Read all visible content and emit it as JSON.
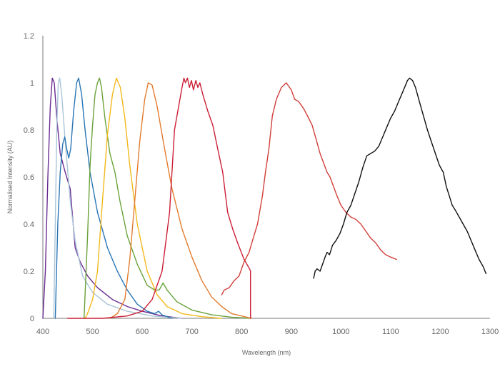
{
  "chart_data": {
    "type": "line",
    "title": "",
    "xlabel": "Wavelength (nm)",
    "ylabel": "Normalised Intensity (AU)",
    "xlim": [
      400,
      1300
    ],
    "ylim": [
      0,
      1.2
    ],
    "xticks": [
      400,
      500,
      600,
      700,
      800,
      900,
      1000,
      1100,
      1200,
      1300
    ],
    "yticks": [
      0,
      0.2,
      0.4,
      0.6,
      0.8,
      1,
      1.2
    ],
    "xtick_labels": [
      "400",
      "500",
      "600",
      "700",
      "800",
      "900",
      "1000",
      "1100",
      "1200",
      "1300"
    ],
    "ytick_labels": [
      "0",
      "0.2",
      "0.4",
      "0.6",
      "0.8",
      "1",
      "1.2"
    ],
    "grid": false,
    "legend": "none",
    "series": [
      {
        "color": "#6a2c91",
        "points": [
          [
            400,
            0
          ],
          [
            405,
            0.2
          ],
          [
            410,
            0.6
          ],
          [
            415,
            0.9
          ],
          [
            419,
            1.02
          ],
          [
            423,
            1.0
          ],
          [
            428,
            0.85
          ],
          [
            435,
            0.7
          ],
          [
            445,
            0.62
          ],
          [
            455,
            0.55
          ],
          [
            465,
            0.3
          ],
          [
            475,
            0.24
          ],
          [
            490,
            0.18
          ],
          [
            510,
            0.13
          ],
          [
            540,
            0.08
          ],
          [
            570,
            0.05
          ],
          [
            600,
            0.03
          ],
          [
            640,
            0.01
          ],
          [
            680,
            0.0
          ]
        ]
      },
      {
        "color": "#a9c4d8",
        "points": [
          [
            422,
            0
          ],
          [
            425,
            0.4
          ],
          [
            428,
            0.8
          ],
          [
            431,
            1.0
          ],
          [
            434,
            1.02
          ],
          [
            438,
            0.95
          ],
          [
            445,
            0.75
          ],
          [
            455,
            0.5
          ],
          [
            465,
            0.33
          ],
          [
            480,
            0.18
          ],
          [
            500,
            0.11
          ],
          [
            530,
            0.06
          ],
          [
            570,
            0.03
          ],
          [
            620,
            0.01
          ],
          [
            680,
            0.0
          ]
        ]
      },
      {
        "color": "#2a76b4",
        "points": [
          [
            425,
            0
          ],
          [
            430,
            0.4
          ],
          [
            435,
            0.62
          ],
          [
            440,
            0.74
          ],
          [
            444,
            0.77
          ],
          [
            448,
            0.72
          ],
          [
            452,
            0.68
          ],
          [
            456,
            0.72
          ],
          [
            462,
            0.88
          ],
          [
            468,
            1.0
          ],
          [
            472,
            1.02
          ],
          [
            478,
            0.95
          ],
          [
            485,
            0.8
          ],
          [
            495,
            0.62
          ],
          [
            510,
            0.45
          ],
          [
            530,
            0.3
          ],
          [
            550,
            0.2
          ],
          [
            570,
            0.12
          ],
          [
            590,
            0.06
          ],
          [
            610,
            0.03
          ],
          [
            625,
            0.02
          ],
          [
            633,
            0.03
          ],
          [
            640,
            0.015
          ],
          [
            660,
            0.0
          ]
        ]
      },
      {
        "color": "#6aa23a",
        "points": [
          [
            483,
            0
          ],
          [
            490,
            0.35
          ],
          [
            495,
            0.65
          ],
          [
            500,
            0.82
          ],
          [
            505,
            0.95
          ],
          [
            510,
            1.0
          ],
          [
            514,
            1.02
          ],
          [
            518,
            0.98
          ],
          [
            525,
            0.85
          ],
          [
            535,
            0.7
          ],
          [
            545,
            0.62
          ],
          [
            555,
            0.5
          ],
          [
            570,
            0.35
          ],
          [
            590,
            0.23
          ],
          [
            610,
            0.14
          ],
          [
            625,
            0.12
          ],
          [
            634,
            0.12
          ],
          [
            642,
            0.15
          ],
          [
            650,
            0.12
          ],
          [
            670,
            0.07
          ],
          [
            700,
            0.035
          ],
          [
            740,
            0.015
          ],
          [
            780,
            0.005
          ],
          [
            820,
            0.0
          ]
        ]
      },
      {
        "color": "#f2b81b",
        "points": [
          [
            485,
            0
          ],
          [
            490,
            0.02
          ],
          [
            500,
            0.08
          ],
          [
            510,
            0.2
          ],
          [
            520,
            0.5
          ],
          [
            530,
            0.78
          ],
          [
            540,
            0.95
          ],
          [
            548,
            1.02
          ],
          [
            556,
            0.98
          ],
          [
            565,
            0.85
          ],
          [
            575,
            0.65
          ],
          [
            590,
            0.4
          ],
          [
            610,
            0.2
          ],
          [
            630,
            0.1
          ],
          [
            650,
            0.05
          ],
          [
            680,
            0.02
          ],
          [
            720,
            0.007
          ],
          [
            760,
            0.0
          ]
        ]
      },
      {
        "color": "#e37b2e",
        "points": [
          [
            535,
            0
          ],
          [
            550,
            0.02
          ],
          [
            565,
            0.08
          ],
          [
            575,
            0.25
          ],
          [
            585,
            0.5
          ],
          [
            595,
            0.75
          ],
          [
            605,
            0.93
          ],
          [
            612,
            1.0
          ],
          [
            620,
            0.99
          ],
          [
            630,
            0.9
          ],
          [
            645,
            0.72
          ],
          [
            660,
            0.55
          ],
          [
            680,
            0.38
          ],
          [
            700,
            0.26
          ],
          [
            720,
            0.16
          ],
          [
            740,
            0.09
          ],
          [
            760,
            0.05
          ],
          [
            780,
            0.02
          ],
          [
            800,
            0.01
          ],
          [
            820,
            0.0
          ]
        ]
      },
      {
        "color": "#cc1f36",
        "points": [
          [
            450,
            0
          ],
          [
            520,
            0
          ],
          [
            570,
            0.01
          ],
          [
            600,
            0.03
          ],
          [
            620,
            0.08
          ],
          [
            640,
            0.2
          ],
          [
            655,
            0.45
          ],
          [
            665,
            0.8
          ],
          [
            675,
            0.92
          ],
          [
            680,
            0.98
          ],
          [
            684,
            1.02
          ],
          [
            687,
            1.0
          ],
          [
            691,
            1.02
          ],
          [
            695,
            0.98
          ],
          [
            699,
            1.01
          ],
          [
            703,
            0.97
          ],
          [
            708,
            1.01
          ],
          [
            712,
            0.98
          ],
          [
            716,
            1.0
          ],
          [
            722,
            0.95
          ],
          [
            732,
            0.88
          ],
          [
            742,
            0.82
          ],
          [
            752,
            0.72
          ],
          [
            762,
            0.62
          ],
          [
            772,
            0.45
          ],
          [
            782,
            0.38
          ],
          [
            792,
            0.32
          ],
          [
            805,
            0.25
          ],
          [
            816,
            0.21
          ],
          [
            818,
            0.2
          ],
          [
            818,
            0.0
          ]
        ]
      },
      {
        "color": "#d13f3a",
        "points": [
          [
            760,
            0.1
          ],
          [
            765,
            0.12
          ],
          [
            775,
            0.13
          ],
          [
            785,
            0.16
          ],
          [
            795,
            0.18
          ],
          [
            805,
            0.24
          ],
          [
            815,
            0.28
          ],
          [
            822,
            0.33
          ],
          [
            832,
            0.4
          ],
          [
            842,
            0.52
          ],
          [
            848,
            0.62
          ],
          [
            855,
            0.72
          ],
          [
            862,
            0.86
          ],
          [
            870,
            0.93
          ],
          [
            880,
            0.98
          ],
          [
            890,
            1.0
          ],
          [
            900,
            0.97
          ],
          [
            907,
            0.93
          ],
          [
            915,
            0.92
          ],
          [
            925,
            0.89
          ],
          [
            935,
            0.85
          ],
          [
            942,
            0.82
          ],
          [
            950,
            0.76
          ],
          [
            958,
            0.7
          ],
          [
            965,
            0.66
          ],
          [
            972,
            0.62
          ],
          [
            978,
            0.6
          ],
          [
            985,
            0.56
          ],
          [
            992,
            0.52
          ],
          [
            1000,
            0.48
          ],
          [
            1010,
            0.45
          ],
          [
            1020,
            0.43
          ],
          [
            1030,
            0.42
          ],
          [
            1040,
            0.4
          ],
          [
            1050,
            0.37
          ],
          [
            1060,
            0.34
          ],
          [
            1070,
            0.32
          ],
          [
            1080,
            0.29
          ],
          [
            1090,
            0.27
          ],
          [
            1100,
            0.26
          ],
          [
            1112,
            0.25
          ]
        ]
      },
      {
        "color": "#111111",
        "points": [
          [
            945,
            0.17
          ],
          [
            948,
            0.2
          ],
          [
            952,
            0.21
          ],
          [
            958,
            0.2
          ],
          [
            963,
            0.23
          ],
          [
            968,
            0.26
          ],
          [
            972,
            0.28
          ],
          [
            977,
            0.27
          ],
          [
            983,
            0.31
          ],
          [
            990,
            0.33
          ],
          [
            998,
            0.36
          ],
          [
            1005,
            0.4
          ],
          [
            1012,
            0.45
          ],
          [
            1020,
            0.48
          ],
          [
            1028,
            0.53
          ],
          [
            1036,
            0.58
          ],
          [
            1044,
            0.64
          ],
          [
            1052,
            0.69
          ],
          [
            1060,
            0.7
          ],
          [
            1068,
            0.71
          ],
          [
            1076,
            0.73
          ],
          [
            1084,
            0.77
          ],
          [
            1092,
            0.81
          ],
          [
            1100,
            0.85
          ],
          [
            1108,
            0.88
          ],
          [
            1116,
            0.92
          ],
          [
            1124,
            0.96
          ],
          [
            1130,
            0.99
          ],
          [
            1134,
            1.01
          ],
          [
            1138,
            1.02
          ],
          [
            1144,
            1.01
          ],
          [
            1150,
            0.98
          ],
          [
            1158,
            0.92
          ],
          [
            1166,
            0.86
          ],
          [
            1174,
            0.8
          ],
          [
            1182,
            0.75
          ],
          [
            1190,
            0.7
          ],
          [
            1198,
            0.65
          ],
          [
            1206,
            0.62
          ],
          [
            1212,
            0.56
          ],
          [
            1218,
            0.52
          ],
          [
            1224,
            0.48
          ],
          [
            1230,
            0.46
          ],
          [
            1238,
            0.43
          ],
          [
            1246,
            0.4
          ],
          [
            1254,
            0.37
          ],
          [
            1262,
            0.33
          ],
          [
            1270,
            0.29
          ],
          [
            1278,
            0.25
          ],
          [
            1286,
            0.22
          ],
          [
            1292,
            0.19
          ]
        ]
      }
    ]
  }
}
